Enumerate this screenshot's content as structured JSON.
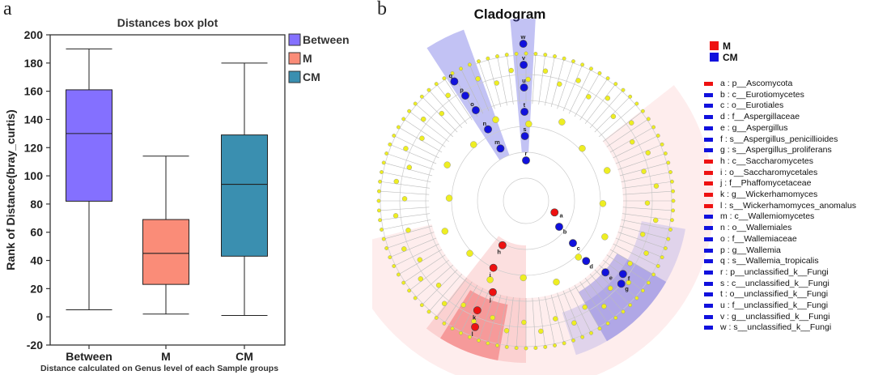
{
  "panels": {
    "a": "a",
    "b": "b"
  },
  "chart_data": [
    {
      "type": "box",
      "title": "Distances box plot",
      "ylabel": "Rank of Distance(bray_curtis)",
      "xlabel": "Distance calculated on Genus level of each Sample groups",
      "ylim": [
        -20,
        200
      ],
      "yticks": [
        -20,
        0,
        20,
        40,
        60,
        80,
        100,
        120,
        140,
        160,
        180,
        200
      ],
      "categories": [
        "Between",
        "M",
        "CM"
      ],
      "boxes": [
        {
          "name": "Between",
          "min": 5,
          "q1": 82,
          "median": 130,
          "q3": 161,
          "max": 190,
          "color": "#8470FF"
        },
        {
          "name": "M",
          "min": 2,
          "q1": 23,
          "median": 45,
          "q3": 69,
          "max": 114,
          "color": "#FA8C78"
        },
        {
          "name": "CM",
          "min": 1,
          "q1": 43,
          "median": 94,
          "q3": 129,
          "max": 180,
          "color": "#3A8FB0"
        }
      ],
      "legend": [
        "Between",
        "M",
        "CM"
      ]
    },
    {
      "type": "cladogram",
      "title": "Cladogram",
      "groups": [
        {
          "name": "M",
          "color": "#EE1111"
        },
        {
          "name": "CM",
          "color": "#1111DD"
        }
      ],
      "biomarkers": [
        {
          "letter": "a",
          "group": "M",
          "text": "a : p__Ascomycota"
        },
        {
          "letter": "b",
          "group": "CM",
          "text": "b : c__Eurotiomycetes"
        },
        {
          "letter": "c",
          "group": "CM",
          "text": "c : o__Eurotiales"
        },
        {
          "letter": "d",
          "group": "CM",
          "text": "d : f__Aspergillaceae"
        },
        {
          "letter": "e",
          "group": "CM",
          "text": "e : g__Aspergillus"
        },
        {
          "letter": "f",
          "group": "CM",
          "text": "f : s__Aspergillus_penicillioides"
        },
        {
          "letter": "g",
          "group": "CM",
          "text": "g : s__Aspergillus_proliferans"
        },
        {
          "letter": "h",
          "group": "M",
          "text": "h : c__Saccharomycetes"
        },
        {
          "letter": "i",
          "group": "M",
          "text": "i : o__Saccharomycetales"
        },
        {
          "letter": "j",
          "group": "M",
          "text": "j : f__Phaffomycetaceae"
        },
        {
          "letter": "k",
          "group": "M",
          "text": "k : g__Wickerhamomyces"
        },
        {
          "letter": "l",
          "group": "M",
          "text": "l : s__Wickerhamomyces_anomalus"
        },
        {
          "letter": "m",
          "group": "CM",
          "text": "m : c__Wallemiomycetes"
        },
        {
          "letter": "n",
          "group": "CM",
          "text": "n : o__Wallemiales"
        },
        {
          "letter": "o",
          "group": "CM",
          "text": "o : f__Wallemiaceae"
        },
        {
          "letter": "p",
          "group": "CM",
          "text": "p : g__Wallemia"
        },
        {
          "letter": "q",
          "group": "CM",
          "text": "q : s__Wallemia_tropicalis"
        },
        {
          "letter": "r",
          "group": "CM",
          "text": "r : p__unclassified_k__Fungi"
        },
        {
          "letter": "s",
          "group": "CM",
          "text": "s : c__unclassified_k__Fungi"
        },
        {
          "letter": "t",
          "group": "CM",
          "text": "t : o__unclassified_k__Fungi"
        },
        {
          "letter": "u",
          "group": "CM",
          "text": "u : f__unclassified_k__Fungi"
        },
        {
          "letter": "v",
          "group": "CM",
          "text": "v : g__unclassified_k__Fungi"
        },
        {
          "letter": "w",
          "group": "CM",
          "text": "w : s__unclassified_k__Fungi"
        }
      ]
    }
  ]
}
